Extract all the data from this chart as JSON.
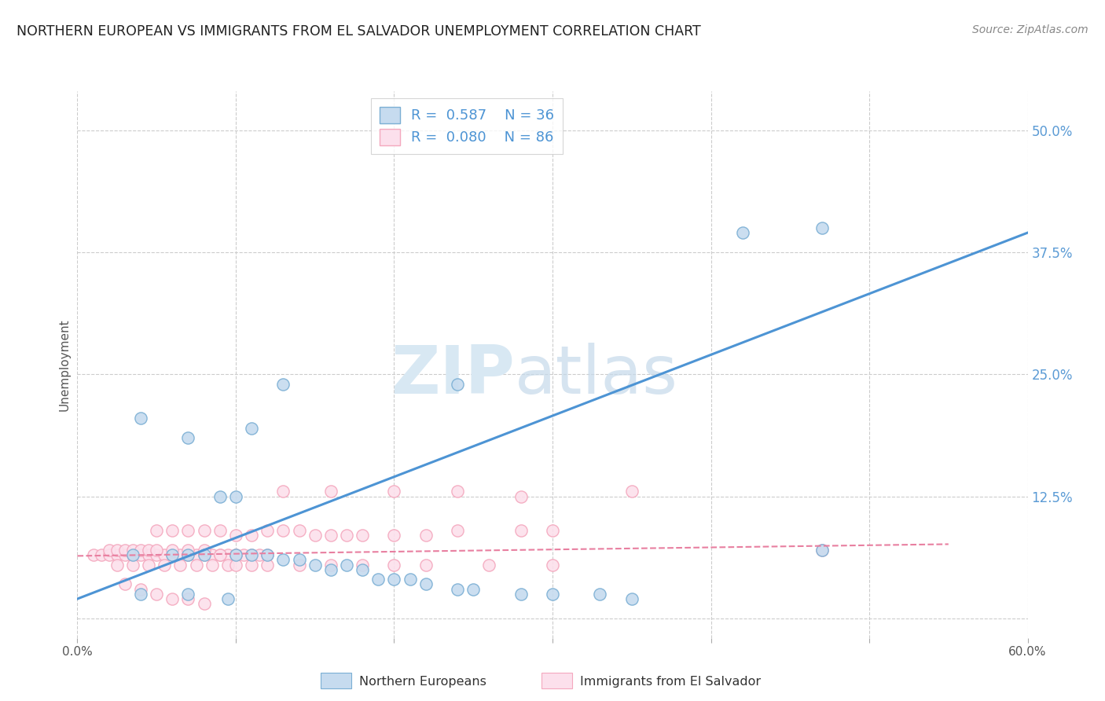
{
  "title": "NORTHERN EUROPEAN VS IMMIGRANTS FROM EL SALVADOR UNEMPLOYMENT CORRELATION CHART",
  "source": "Source: ZipAtlas.com",
  "ylabel": "Unemployment",
  "ytick_labels": [
    "",
    "12.5%",
    "25.0%",
    "37.5%",
    "50.0%"
  ],
  "ytick_vals": [
    0.0,
    0.125,
    0.25,
    0.375,
    0.5
  ],
  "xlim": [
    0.0,
    0.6
  ],
  "ylim": [
    -0.02,
    0.54
  ],
  "watermark_zip": "ZIP",
  "watermark_atlas": "atlas",
  "blue_scatter_color": "#7bafd4",
  "blue_fill": "#c6dbef",
  "blue_edge": "#7bafd4",
  "pink_scatter_color": "#f4a8be",
  "pink_fill": "#fce0ec",
  "pink_edge": "#f4a8be",
  "line_blue": "#4d94d4",
  "line_pink": "#e87fa0",
  "blue_line_x": [
    0.0,
    0.6
  ],
  "blue_line_y": [
    0.02,
    0.395
  ],
  "pink_line_x": [
    0.0,
    0.55
  ],
  "pink_line_y": [
    0.064,
    0.076
  ],
  "northern_europeans_x": [
    0.035,
    0.06,
    0.07,
    0.08,
    0.1,
    0.11,
    0.12,
    0.13,
    0.14,
    0.15,
    0.16,
    0.17,
    0.18,
    0.19,
    0.2,
    0.21,
    0.22,
    0.24,
    0.25,
    0.28,
    0.3,
    0.33,
    0.35,
    0.47,
    0.04,
    0.07,
    0.09,
    0.1,
    0.11,
    0.13,
    0.24,
    0.47,
    0.04,
    0.07,
    0.095,
    0.42
  ],
  "northern_europeans_y": [
    0.065,
    0.065,
    0.065,
    0.065,
    0.065,
    0.065,
    0.065,
    0.06,
    0.06,
    0.055,
    0.05,
    0.055,
    0.05,
    0.04,
    0.04,
    0.04,
    0.035,
    0.03,
    0.03,
    0.025,
    0.025,
    0.025,
    0.02,
    0.07,
    0.205,
    0.185,
    0.125,
    0.125,
    0.195,
    0.24,
    0.24,
    0.4,
    0.025,
    0.025,
    0.02,
    0.395
  ],
  "el_salvador_x": [
    0.01,
    0.015,
    0.02,
    0.025,
    0.03,
    0.035,
    0.04,
    0.045,
    0.05,
    0.055,
    0.06,
    0.065,
    0.07,
    0.075,
    0.08,
    0.085,
    0.09,
    0.095,
    0.1,
    0.105,
    0.11,
    0.115,
    0.02,
    0.025,
    0.03,
    0.035,
    0.04,
    0.045,
    0.05,
    0.06,
    0.07,
    0.08,
    0.09,
    0.1,
    0.12,
    0.05,
    0.06,
    0.07,
    0.08,
    0.09,
    0.1,
    0.11,
    0.12,
    0.13,
    0.14,
    0.15,
    0.16,
    0.17,
    0.18,
    0.2,
    0.22,
    0.24,
    0.28,
    0.3,
    0.13,
    0.16,
    0.2,
    0.24,
    0.28,
    0.35,
    0.025,
    0.035,
    0.045,
    0.055,
    0.065,
    0.075,
    0.085,
    0.095,
    0.1,
    0.11,
    0.12,
    0.14,
    0.16,
    0.18,
    0.2,
    0.22,
    0.26,
    0.3,
    0.47,
    0.03,
    0.04,
    0.05,
    0.06,
    0.07,
    0.08
  ],
  "el_salvador_y": [
    0.065,
    0.065,
    0.065,
    0.065,
    0.065,
    0.065,
    0.065,
    0.065,
    0.065,
    0.065,
    0.065,
    0.065,
    0.065,
    0.065,
    0.065,
    0.065,
    0.065,
    0.065,
    0.065,
    0.065,
    0.065,
    0.065,
    0.07,
    0.07,
    0.07,
    0.07,
    0.07,
    0.07,
    0.07,
    0.07,
    0.07,
    0.07,
    0.065,
    0.065,
    0.065,
    0.09,
    0.09,
    0.09,
    0.09,
    0.09,
    0.085,
    0.085,
    0.09,
    0.09,
    0.09,
    0.085,
    0.085,
    0.085,
    0.085,
    0.085,
    0.085,
    0.09,
    0.09,
    0.09,
    0.13,
    0.13,
    0.13,
    0.13,
    0.125,
    0.13,
    0.055,
    0.055,
    0.055,
    0.055,
    0.055,
    0.055,
    0.055,
    0.055,
    0.055,
    0.055,
    0.055,
    0.055,
    0.055,
    0.055,
    0.055,
    0.055,
    0.055,
    0.055,
    0.07,
    0.035,
    0.03,
    0.025,
    0.02,
    0.02,
    0.015
  ]
}
